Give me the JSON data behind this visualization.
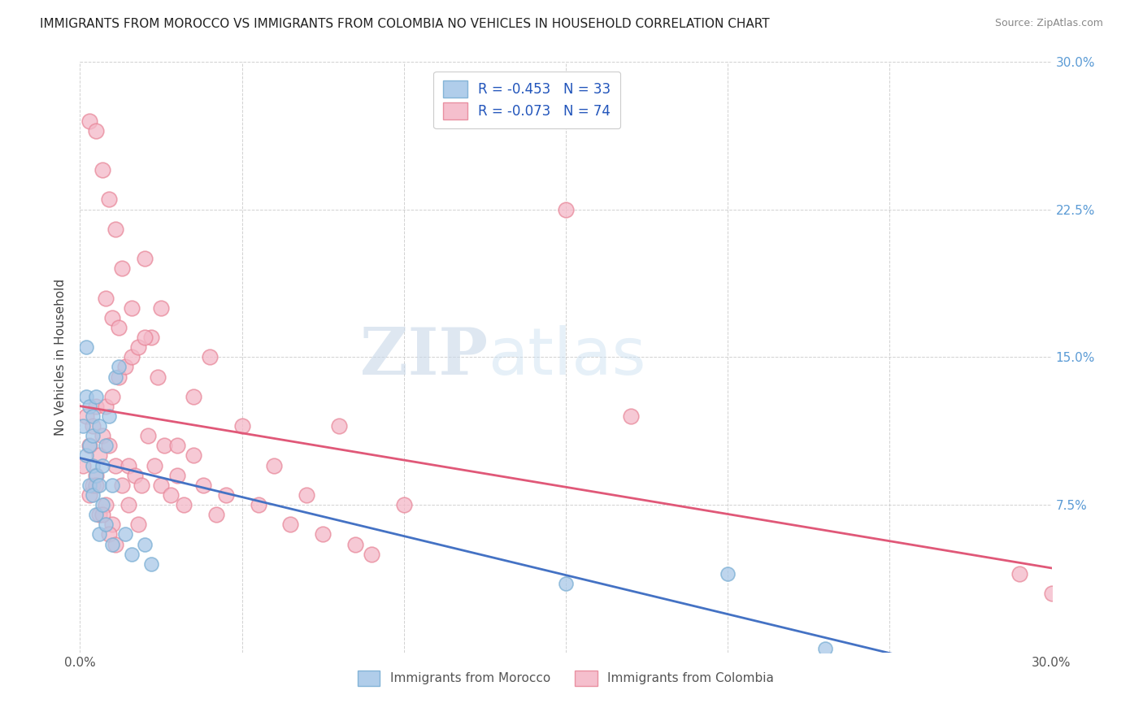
{
  "title": "IMMIGRANTS FROM MOROCCO VS IMMIGRANTS FROM COLOMBIA NO VEHICLES IN HOUSEHOLD CORRELATION CHART",
  "source": "Source: ZipAtlas.com",
  "ylabel": "No Vehicles in Household",
  "xlim": [
    0.0,
    0.3
  ],
  "ylim": [
    0.0,
    0.3
  ],
  "xtick_pos": [
    0.0,
    0.05,
    0.1,
    0.15,
    0.2,
    0.25,
    0.3
  ],
  "ytick_pos": [
    0.0,
    0.075,
    0.15,
    0.225,
    0.3
  ],
  "xtick_labels": [
    "0.0%",
    "",
    "",
    "",
    "",
    "",
    "30.0%"
  ],
  "ytick_labels_right": [
    "",
    "7.5%",
    "15.0%",
    "22.5%",
    "30.0%"
  ],
  "morocco_color": "#a8c8e8",
  "morocco_edge_color": "#7bafd4",
  "colombia_color": "#f4b8c8",
  "colombia_edge_color": "#e8889a",
  "line_morocco_color": "#4472c4",
  "line_colombia_color": "#e05878",
  "morocco_R": -0.453,
  "morocco_N": 33,
  "colombia_R": -0.073,
  "colombia_N": 74,
  "legend_label_morocco": "R = -0.453   N = 33",
  "legend_label_colombia": "R = -0.073   N = 74",
  "watermark_zip": "ZIP",
  "watermark_atlas": "atlas",
  "legend_label_bottom_morocco": "Immigrants from Morocco",
  "legend_label_bottom_colombia": "Immigrants from Colombia",
  "morocco_x": [
    0.001,
    0.002,
    0.002,
    0.002,
    0.003,
    0.003,
    0.003,
    0.004,
    0.004,
    0.004,
    0.004,
    0.005,
    0.005,
    0.005,
    0.006,
    0.006,
    0.006,
    0.007,
    0.007,
    0.008,
    0.008,
    0.009,
    0.01,
    0.01,
    0.011,
    0.012,
    0.014,
    0.016,
    0.02,
    0.022,
    0.15,
    0.2,
    0.23
  ],
  "morocco_y": [
    0.115,
    0.155,
    0.13,
    0.1,
    0.125,
    0.105,
    0.085,
    0.12,
    0.095,
    0.11,
    0.08,
    0.13,
    0.09,
    0.07,
    0.115,
    0.085,
    0.06,
    0.095,
    0.075,
    0.105,
    0.065,
    0.12,
    0.085,
    0.055,
    0.14,
    0.145,
    0.06,
    0.05,
    0.055,
    0.045,
    0.035,
    0.04,
    0.002
  ],
  "colombia_x": [
    0.001,
    0.002,
    0.003,
    0.003,
    0.004,
    0.004,
    0.005,
    0.005,
    0.006,
    0.006,
    0.007,
    0.008,
    0.008,
    0.009,
    0.01,
    0.01,
    0.011,
    0.012,
    0.013,
    0.014,
    0.015,
    0.016,
    0.017,
    0.018,
    0.019,
    0.02,
    0.021,
    0.022,
    0.023,
    0.024,
    0.025,
    0.026,
    0.028,
    0.03,
    0.032,
    0.035,
    0.038,
    0.04,
    0.042,
    0.045,
    0.05,
    0.055,
    0.06,
    0.065,
    0.07,
    0.075,
    0.08,
    0.085,
    0.09,
    0.1,
    0.003,
    0.005,
    0.007,
    0.009,
    0.011,
    0.013,
    0.016,
    0.02,
    0.025,
    0.03,
    0.035,
    0.008,
    0.01,
    0.012,
    0.15,
    0.17,
    0.005,
    0.007,
    0.009,
    0.011,
    0.015,
    0.018,
    0.29,
    0.3
  ],
  "colombia_y": [
    0.095,
    0.12,
    0.105,
    0.08,
    0.115,
    0.085,
    0.125,
    0.09,
    0.1,
    0.07,
    0.11,
    0.125,
    0.075,
    0.105,
    0.13,
    0.065,
    0.095,
    0.14,
    0.085,
    0.145,
    0.095,
    0.15,
    0.09,
    0.155,
    0.085,
    0.2,
    0.11,
    0.16,
    0.095,
    0.14,
    0.085,
    0.105,
    0.08,
    0.09,
    0.075,
    0.13,
    0.085,
    0.15,
    0.07,
    0.08,
    0.115,
    0.075,
    0.095,
    0.065,
    0.08,
    0.06,
    0.115,
    0.055,
    0.05,
    0.075,
    0.27,
    0.265,
    0.245,
    0.23,
    0.215,
    0.195,
    0.175,
    0.16,
    0.175,
    0.105,
    0.1,
    0.18,
    0.17,
    0.165,
    0.225,
    0.12,
    0.085,
    0.07,
    0.06,
    0.055,
    0.075,
    0.065,
    0.04,
    0.03
  ]
}
